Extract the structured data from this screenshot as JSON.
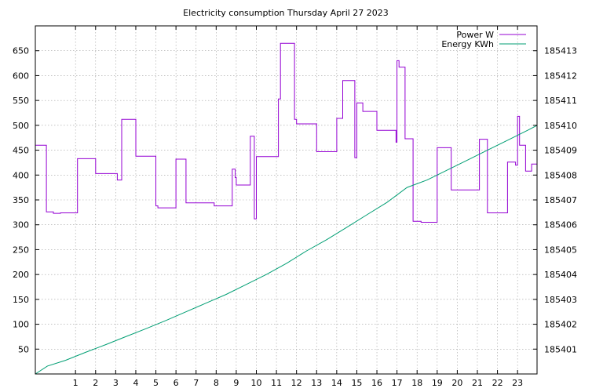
{
  "chart_data": {
    "type": "line",
    "title": "Electricity consumption Thursday April 27 2023",
    "xlabel": "",
    "ylabel": "",
    "y2label": "",
    "xlim": [
      -1.0,
      23.97
    ],
    "ylim": [
      0,
      700
    ],
    "y2lim": [
      185400.0,
      185414.0
    ],
    "x_ticks": [
      "1",
      "2",
      "3",
      "4",
      "5",
      "6",
      "7",
      "8",
      "9",
      "10",
      "11",
      "12",
      "13",
      "14",
      "15",
      "16",
      "17",
      "18",
      "19",
      "20",
      "21",
      "22",
      "23"
    ],
    "y_ticks": [
      50,
      100,
      150,
      200,
      250,
      300,
      350,
      400,
      450,
      500,
      550,
      600,
      650
    ],
    "y2_ticks": [
      185401,
      185402,
      185403,
      185404,
      185405,
      185406,
      185407,
      185408,
      185409,
      185410,
      185411,
      185412,
      185413
    ],
    "grid": true,
    "legend_position": "top-right",
    "series": [
      {
        "name": "Power W",
        "axis": "left",
        "color": "#9400d3",
        "step": true,
        "x": [
          -1.0,
          -0.45,
          -0.1,
          0.25,
          1.1,
          2.0,
          3.0,
          3.08,
          3.3,
          4.0,
          5.0,
          5.1,
          6.0,
          6.5,
          7.0,
          7.5,
          7.9,
          8.3,
          8.8,
          8.95,
          9.0,
          9.7,
          9.9,
          10.0,
          11.0,
          11.1,
          11.2,
          11.9,
          12.0,
          12.3,
          13.0,
          13.9,
          14.0,
          14.3,
          14.5,
          14.9,
          15.0,
          15.3,
          15.8,
          16.0,
          16.5,
          16.95,
          17.0,
          17.1,
          17.4,
          17.8,
          18.2,
          18.8,
          19.0,
          19.3,
          19.7,
          20.3,
          21.1,
          21.5,
          22.2,
          22.5,
          22.9,
          23.0,
          23.1,
          23.4,
          23.7
        ],
        "y": [
          460,
          326,
          323,
          324,
          433,
          403,
          403,
          390,
          512,
          438,
          338,
          334,
          432,
          344,
          344,
          344,
          338,
          338,
          412,
          395,
          380,
          478,
          312,
          437,
          437,
          553,
          665,
          512,
          503,
          503,
          447,
          447,
          514,
          590,
          590,
          435,
          545,
          528,
          528,
          490,
          490,
          466,
          630,
          617,
          473,
          307,
          305,
          305,
          455,
          455,
          370,
          370,
          472,
          324,
          324,
          426,
          420,
          518,
          460,
          408,
          422
        ],
        "end_x": 23.97
      },
      {
        "name": "Energy KWh",
        "axis": "right",
        "color": "#009e73",
        "x": [
          -1.0,
          -0.4,
          0.5,
          1.5,
          2.5,
          3.5,
          4.5,
          5.5,
          6.5,
          7.5,
          8.5,
          9.5,
          10.5,
          11.5,
          12.5,
          13.5,
          14.5,
          15.5,
          16.5,
          17.0,
          17.5,
          18.5,
          19.5,
          20.5,
          21.5,
          22.5,
          23.5,
          23.97
        ],
        "y": [
          185400.0,
          185400.32,
          185400.55,
          185400.87,
          185401.18,
          185401.5,
          185401.82,
          185402.15,
          185402.5,
          185402.85,
          185403.2,
          185403.6,
          185404.0,
          185404.45,
          185404.95,
          185405.4,
          185405.9,
          185406.4,
          185406.9,
          185407.2,
          185407.5,
          185407.8,
          185408.2,
          185408.6,
          185409.0,
          185409.4,
          185409.8,
          185410.0
        ]
      }
    ]
  }
}
